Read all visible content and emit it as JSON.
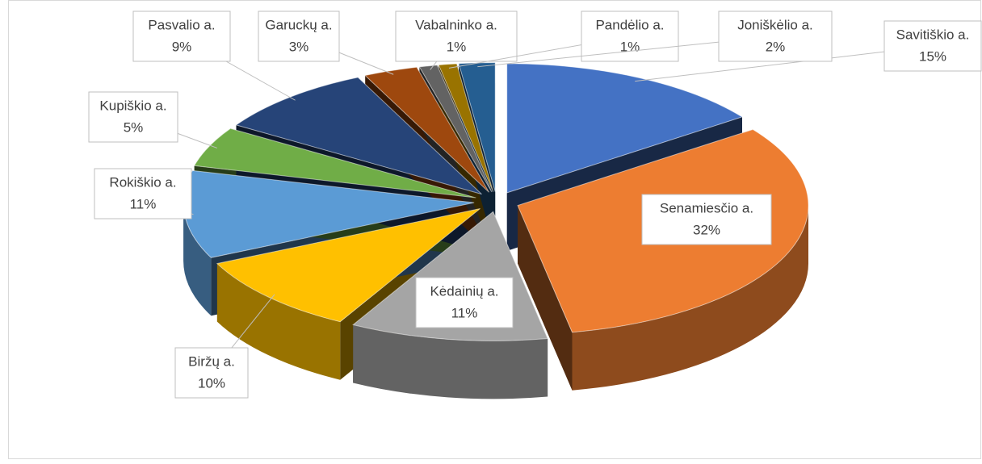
{
  "chart_data": {
    "type": "pie",
    "three_d": true,
    "exploded": true,
    "categories": [
      "Savitiškio a.",
      "Senamiesčio a.",
      "Kėdainių a.",
      "Biržų a.",
      "Rokiškio a.",
      "Kupiškio a.",
      "Pasvalio a.",
      "Garuckų a.",
      "Vabalninko a.",
      "Pandėlio a.",
      "Joniškėlio a."
    ],
    "values": [
      15,
      32,
      11,
      10,
      11,
      5,
      9,
      3,
      1,
      1,
      2
    ],
    "value_labels": [
      "15%",
      "32%",
      "11%",
      "10%",
      "11%",
      "5%",
      "9%",
      "3%",
      "1%",
      "1%",
      "2%"
    ],
    "colors": [
      "#4472c4",
      "#ed7d31",
      "#a5a5a5",
      "#ffc000",
      "#5b9bd5",
      "#70ad47",
      "#264478",
      "#9e480e",
      "#636363",
      "#997300",
      "#255e91"
    ]
  }
}
